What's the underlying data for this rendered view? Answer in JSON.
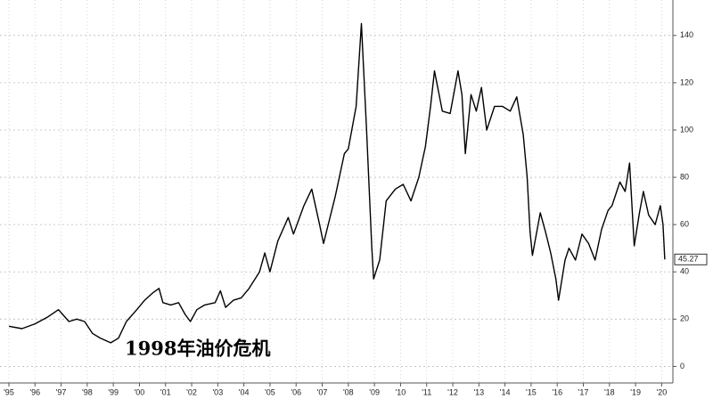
{
  "chart_data": {
    "type": "line",
    "annotation": "1998年油价危机",
    "color": "#000000",
    "grid": true,
    "x": [
      1995.0,
      1995.5,
      1996.0,
      1996.5,
      1996.9,
      1997.3,
      1997.6,
      1997.9,
      1998.2,
      1998.5,
      1998.9,
      1999.2,
      1999.5,
      1999.9,
      2000.2,
      2000.5,
      2000.75,
      2000.9,
      2001.2,
      2001.5,
      2001.75,
      2001.95,
      2002.2,
      2002.5,
      2002.9,
      2003.1,
      2003.3,
      2003.6,
      2003.9,
      2004.2,
      2004.6,
      2004.8,
      2005.0,
      2005.3,
      2005.7,
      2005.9,
      2006.3,
      2006.6,
      2006.9,
      2007.05,
      2007.5,
      2007.85,
      2008.0,
      2008.3,
      2008.5,
      2008.7,
      2008.9,
      2008.97,
      2009.2,
      2009.45,
      2009.8,
      2010.1,
      2010.4,
      2010.7,
      2010.95,
      2011.15,
      2011.3,
      2011.6,
      2011.9,
      2012.2,
      2012.35,
      2012.48,
      2012.7,
      2012.9,
      2013.1,
      2013.3,
      2013.6,
      2013.9,
      2014.2,
      2014.45,
      2014.7,
      2014.85,
      2014.96,
      2015.05,
      2015.35,
      2015.55,
      2015.75,
      2015.95,
      2016.05,
      2016.3,
      2016.45,
      2016.7,
      2016.95,
      2017.2,
      2017.45,
      2017.7,
      2017.95,
      2018.1,
      2018.4,
      2018.6,
      2018.77,
      2018.95,
      2019.15,
      2019.3,
      2019.5,
      2019.75,
      2019.95,
      2020.05,
      2020.12
    ],
    "values": [
      17,
      16,
      18,
      21,
      24,
      19,
      20,
      19,
      14,
      12,
      10,
      12,
      19,
      24,
      28,
      31,
      33,
      27,
      26,
      27,
      22,
      19,
      24,
      26,
      27,
      32,
      25,
      28,
      29,
      33,
      40,
      48,
      40,
      53,
      63,
      56,
      68,
      75,
      60,
      52,
      72,
      90,
      92,
      110,
      145,
      100,
      50,
      37,
      45,
      70,
      75,
      77,
      70,
      80,
      93,
      110,
      125,
      108,
      107,
      125,
      115,
      90,
      115,
      108,
      118,
      100,
      110,
      110,
      108,
      114,
      98,
      80,
      57,
      47,
      65,
      57,
      48,
      37,
      28,
      45,
      50,
      45,
      56,
      52,
      45,
      58,
      66,
      68,
      78,
      74,
      86,
      51,
      65,
      74,
      64,
      60,
      68,
      60,
      45.27
    ],
    "xlim": [
      1994.66,
      2020.43
    ],
    "xticks": [
      {
        "value": 1995,
        "label": "'95"
      },
      {
        "value": 1996,
        "label": "'96"
      },
      {
        "value": 1997,
        "label": "'97"
      },
      {
        "value": 1998,
        "label": "'98"
      },
      {
        "value": 1999,
        "label": "'99"
      },
      {
        "value": 2000,
        "label": "'00"
      },
      {
        "value": 2001,
        "label": "'01"
      },
      {
        "value": 2002,
        "label": "'02"
      },
      {
        "value": 2003,
        "label": "'03"
      },
      {
        "value": 2004,
        "label": "'04"
      },
      {
        "value": 2005,
        "label": "'05"
      },
      {
        "value": 2006,
        "label": "'06"
      },
      {
        "value": 2007,
        "label": "'07"
      },
      {
        "value": 2008,
        "label": "'08"
      },
      {
        "value": 2009,
        "label": "'09"
      },
      {
        "value": 2010,
        "label": "'10"
      },
      {
        "value": 2011,
        "label": "'11"
      },
      {
        "value": 2012,
        "label": "'12"
      },
      {
        "value": 2013,
        "label": "'13"
      },
      {
        "value": 2014,
        "label": "'14"
      },
      {
        "value": 2015,
        "label": "'15"
      },
      {
        "value": 2016,
        "label": "'16"
      },
      {
        "value": 2017,
        "label": "'17"
      },
      {
        "value": 2018,
        "label": "'18"
      },
      {
        "value": 2019,
        "label": "'19"
      },
      {
        "value": 2020,
        "label": "'20"
      }
    ],
    "ylim": [
      -7,
      155
    ],
    "yticks": [
      0,
      20,
      40,
      60,
      80,
      100,
      120,
      140
    ]
  }
}
